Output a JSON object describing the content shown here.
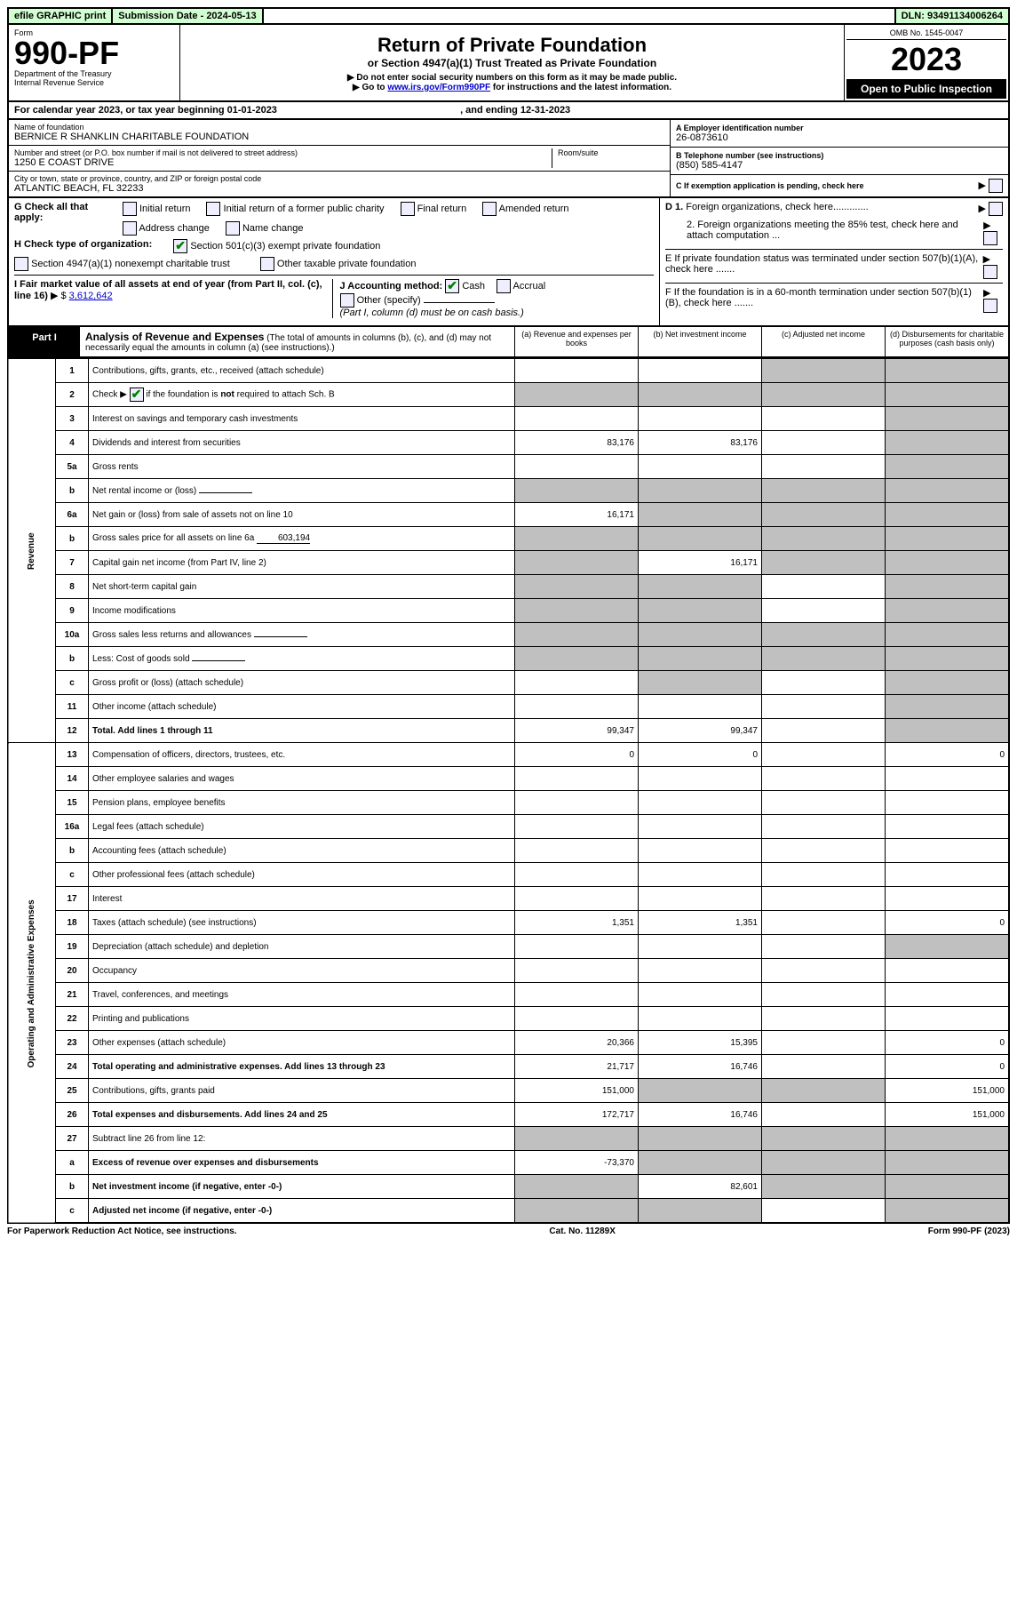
{
  "topbar": {
    "efile": "efile GRAPHIC print",
    "subdate_label": "Submission Date - 2024-05-13",
    "dln": "DLN: 93491134006264"
  },
  "header": {
    "form_label": "Form",
    "form_no": "990-PF",
    "dept": "Department of the Treasury",
    "irs": "Internal Revenue Service",
    "title": "Return of Private Foundation",
    "subtitle": "or Section 4947(a)(1) Trust Treated as Private Foundation",
    "instr1": "▶ Do not enter social security numbers on this form as it may be made public.",
    "instr2_pre": "▶ Go to ",
    "instr2_link": "www.irs.gov/Form990PF",
    "instr2_post": " for instructions and the latest information.",
    "omb": "OMB No. 1545-0047",
    "year": "2023",
    "open": "Open to Public Inspection"
  },
  "calendar": {
    "text_pre": "For calendar year 2023, or tax year beginning ",
    "begin": "01-01-2023",
    "text_mid": " , and ending ",
    "end": "12-31-2023"
  },
  "entity": {
    "name_label": "Name of foundation",
    "name": "BERNICE R SHANKLIN CHARITABLE FOUNDATION",
    "addr_label": "Number and street (or P.O. box number if mail is not delivered to street address)",
    "room_label": "Room/suite",
    "addr": "1250 E COAST DRIVE",
    "city_label": "City or town, state or province, country, and ZIP or foreign postal code",
    "city": "ATLANTIC BEACH, FL  32233",
    "ein_label": "A Employer identification number",
    "ein": "26-0873610",
    "tel_label": "B Telephone number (see instructions)",
    "tel": "(850) 585-4147",
    "c_label": "C If exemption application is pending, check here",
    "d1_label": "D 1. Foreign organizations, check here.............",
    "d2_label": "2. Foreign organizations meeting the 85% test, check here and attach computation ...",
    "e_label": "E  If private foundation status was terminated under section 507(b)(1)(A), check here .......",
    "f_label": "F  If the foundation is in a 60-month termination under section 507(b)(1)(B), check here .......",
    "g_label": "G Check all that apply:",
    "g_opts": [
      "Initial return",
      "Initial return of a former public charity",
      "Final return",
      "Amended return",
      "Address change",
      "Name change"
    ],
    "h_label": "H Check type of organization:",
    "h_opt1": "Section 501(c)(3) exempt private foundation",
    "h_opt2": "Section 4947(a)(1) nonexempt charitable trust",
    "h_opt3": "Other taxable private foundation",
    "i_label": "I Fair market value of all assets at end of year (from Part II, col. (c), line 16)",
    "i_val": "3,612,642",
    "j_label": "J Accounting method:",
    "j_cash": "Cash",
    "j_accrual": "Accrual",
    "j_other": "Other (specify)",
    "j_note": "(Part I, column (d) must be on cash basis.)"
  },
  "part1": {
    "tag": "Part I",
    "title": "Analysis of Revenue and Expenses",
    "note": "(The total of amounts in columns (b), (c), and (d) may not necessarily equal the amounts in column (a) (see instructions).)",
    "col_a": "(a) Revenue and expenses per books",
    "col_b": "(b) Net investment income",
    "col_c": "(c) Adjusted net income",
    "col_d": "(d) Disbursements for charitable purposes (cash basis only)",
    "side_revenue": "Revenue",
    "side_expenses": "Operating and Administrative Expenses"
  },
  "rows": [
    {
      "n": "1",
      "d": "Contributions, gifts, grants, etc., received (attach schedule)",
      "a": "",
      "b": "",
      "c": "grey",
      "dd": "grey"
    },
    {
      "n": "2",
      "d": "Check ▶ ☑ if the foundation is not required to attach Sch. B",
      "a": "grey",
      "b": "grey",
      "c": "grey",
      "dd": "grey",
      "checked": true
    },
    {
      "n": "3",
      "d": "Interest on savings and temporary cash investments",
      "a": "",
      "b": "",
      "c": "",
      "dd": "grey"
    },
    {
      "n": "4",
      "d": "Dividends and interest from securities",
      "a": "83,176",
      "b": "83,176",
      "c": "",
      "dd": "grey"
    },
    {
      "n": "5a",
      "d": "Gross rents",
      "a": "",
      "b": "",
      "c": "",
      "dd": "grey"
    },
    {
      "n": "b",
      "d": "Net rental income or (loss)",
      "a": "grey",
      "b": "grey",
      "c": "grey",
      "dd": "grey",
      "inline": ""
    },
    {
      "n": "6a",
      "d": "Net gain or (loss) from sale of assets not on line 10",
      "a": "16,171",
      "b": "grey",
      "c": "grey",
      "dd": "grey"
    },
    {
      "n": "b",
      "d": "Gross sales price for all assets on line 6a",
      "a": "grey",
      "b": "grey",
      "c": "grey",
      "dd": "grey",
      "inline": "603,194"
    },
    {
      "n": "7",
      "d": "Capital gain net income (from Part IV, line 2)",
      "a": "grey",
      "b": "16,171",
      "c": "grey",
      "dd": "grey"
    },
    {
      "n": "8",
      "d": "Net short-term capital gain",
      "a": "grey",
      "b": "grey",
      "c": "",
      "dd": "grey"
    },
    {
      "n": "9",
      "d": "Income modifications",
      "a": "grey",
      "b": "grey",
      "c": "",
      "dd": "grey"
    },
    {
      "n": "10a",
      "d": "Gross sales less returns and allowances",
      "a": "grey",
      "b": "grey",
      "c": "grey",
      "dd": "grey",
      "inline": ""
    },
    {
      "n": "b",
      "d": "Less: Cost of goods sold",
      "a": "grey",
      "b": "grey",
      "c": "grey",
      "dd": "grey",
      "inline": ""
    },
    {
      "n": "c",
      "d": "Gross profit or (loss) (attach schedule)",
      "a": "",
      "b": "grey",
      "c": "",
      "dd": "grey"
    },
    {
      "n": "11",
      "d": "Other income (attach schedule)",
      "a": "",
      "b": "",
      "c": "",
      "dd": "grey"
    },
    {
      "n": "12",
      "d": "Total. Add lines 1 through 11",
      "a": "99,347",
      "b": "99,347",
      "c": "",
      "dd": "grey",
      "bold": true
    },
    {
      "n": "13",
      "d": "Compensation of officers, directors, trustees, etc.",
      "a": "0",
      "b": "0",
      "c": "",
      "dd": "0"
    },
    {
      "n": "14",
      "d": "Other employee salaries and wages",
      "a": "",
      "b": "",
      "c": "",
      "dd": ""
    },
    {
      "n": "15",
      "d": "Pension plans, employee benefits",
      "a": "",
      "b": "",
      "c": "",
      "dd": ""
    },
    {
      "n": "16a",
      "d": "Legal fees (attach schedule)",
      "a": "",
      "b": "",
      "c": "",
      "dd": ""
    },
    {
      "n": "b",
      "d": "Accounting fees (attach schedule)",
      "a": "",
      "b": "",
      "c": "",
      "dd": ""
    },
    {
      "n": "c",
      "d": "Other professional fees (attach schedule)",
      "a": "",
      "b": "",
      "c": "",
      "dd": ""
    },
    {
      "n": "17",
      "d": "Interest",
      "a": "",
      "b": "",
      "c": "",
      "dd": ""
    },
    {
      "n": "18",
      "d": "Taxes (attach schedule) (see instructions)",
      "a": "1,351",
      "b": "1,351",
      "c": "",
      "dd": "0"
    },
    {
      "n": "19",
      "d": "Depreciation (attach schedule) and depletion",
      "a": "",
      "b": "",
      "c": "",
      "dd": "grey"
    },
    {
      "n": "20",
      "d": "Occupancy",
      "a": "",
      "b": "",
      "c": "",
      "dd": ""
    },
    {
      "n": "21",
      "d": "Travel, conferences, and meetings",
      "a": "",
      "b": "",
      "c": "",
      "dd": ""
    },
    {
      "n": "22",
      "d": "Printing and publications",
      "a": "",
      "b": "",
      "c": "",
      "dd": ""
    },
    {
      "n": "23",
      "d": "Other expenses (attach schedule)",
      "a": "20,366",
      "b": "15,395",
      "c": "",
      "dd": "0"
    },
    {
      "n": "24",
      "d": "Total operating and administrative expenses. Add lines 13 through 23",
      "a": "21,717",
      "b": "16,746",
      "c": "",
      "dd": "0",
      "bold": true
    },
    {
      "n": "25",
      "d": "Contributions, gifts, grants paid",
      "a": "151,000",
      "b": "grey",
      "c": "grey",
      "dd": "151,000"
    },
    {
      "n": "26",
      "d": "Total expenses and disbursements. Add lines 24 and 25",
      "a": "172,717",
      "b": "16,746",
      "c": "",
      "dd": "151,000",
      "bold": true
    },
    {
      "n": "27",
      "d": "Subtract line 26 from line 12:",
      "a": "grey",
      "b": "grey",
      "c": "grey",
      "dd": "grey"
    },
    {
      "n": "a",
      "d": "Excess of revenue over expenses and disbursements",
      "a": "-73,370",
      "b": "grey",
      "c": "grey",
      "dd": "grey",
      "bold": true
    },
    {
      "n": "b",
      "d": "Net investment income (if negative, enter -0-)",
      "a": "grey",
      "b": "82,601",
      "c": "grey",
      "dd": "grey",
      "bold": true
    },
    {
      "n": "c",
      "d": "Adjusted net income (if negative, enter -0-)",
      "a": "grey",
      "b": "grey",
      "c": "",
      "dd": "grey",
      "bold": true
    }
  ],
  "footer": {
    "left": "For Paperwork Reduction Act Notice, see instructions.",
    "mid": "Cat. No. 11289X",
    "right": "Form 990-PF (2023)"
  }
}
